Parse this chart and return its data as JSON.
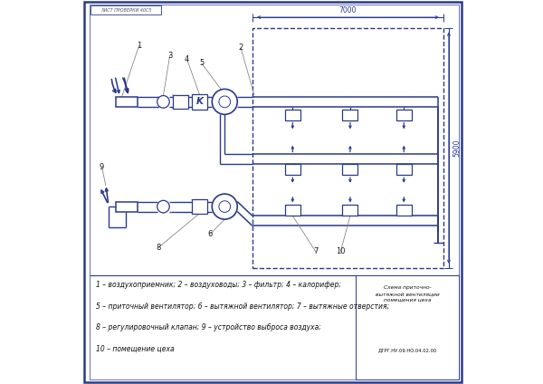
{
  "line_color": "#2a3a8c",
  "legend_lines": [
    "1 – воздухоприемник; 2 – воздуховоды; 3 – фильтр; 4 – калорифер;",
    "5 – приточный вентилятор; 6 – вытяжной вентилятор; 7 – вытяжные отверстия;",
    "8 – регулировочный клапан; 9 – устройство выброса воздуха;",
    "10 – помещение цеха"
  ],
  "dim_horiz": "7000",
  "dim_vert": "5900",
  "title_stamp": "ДТРГ.НУ.09.НО.04.02.00",
  "stamp_text": "Схема приточно-\nвытяжной вентиляции\nпомещения цеха"
}
